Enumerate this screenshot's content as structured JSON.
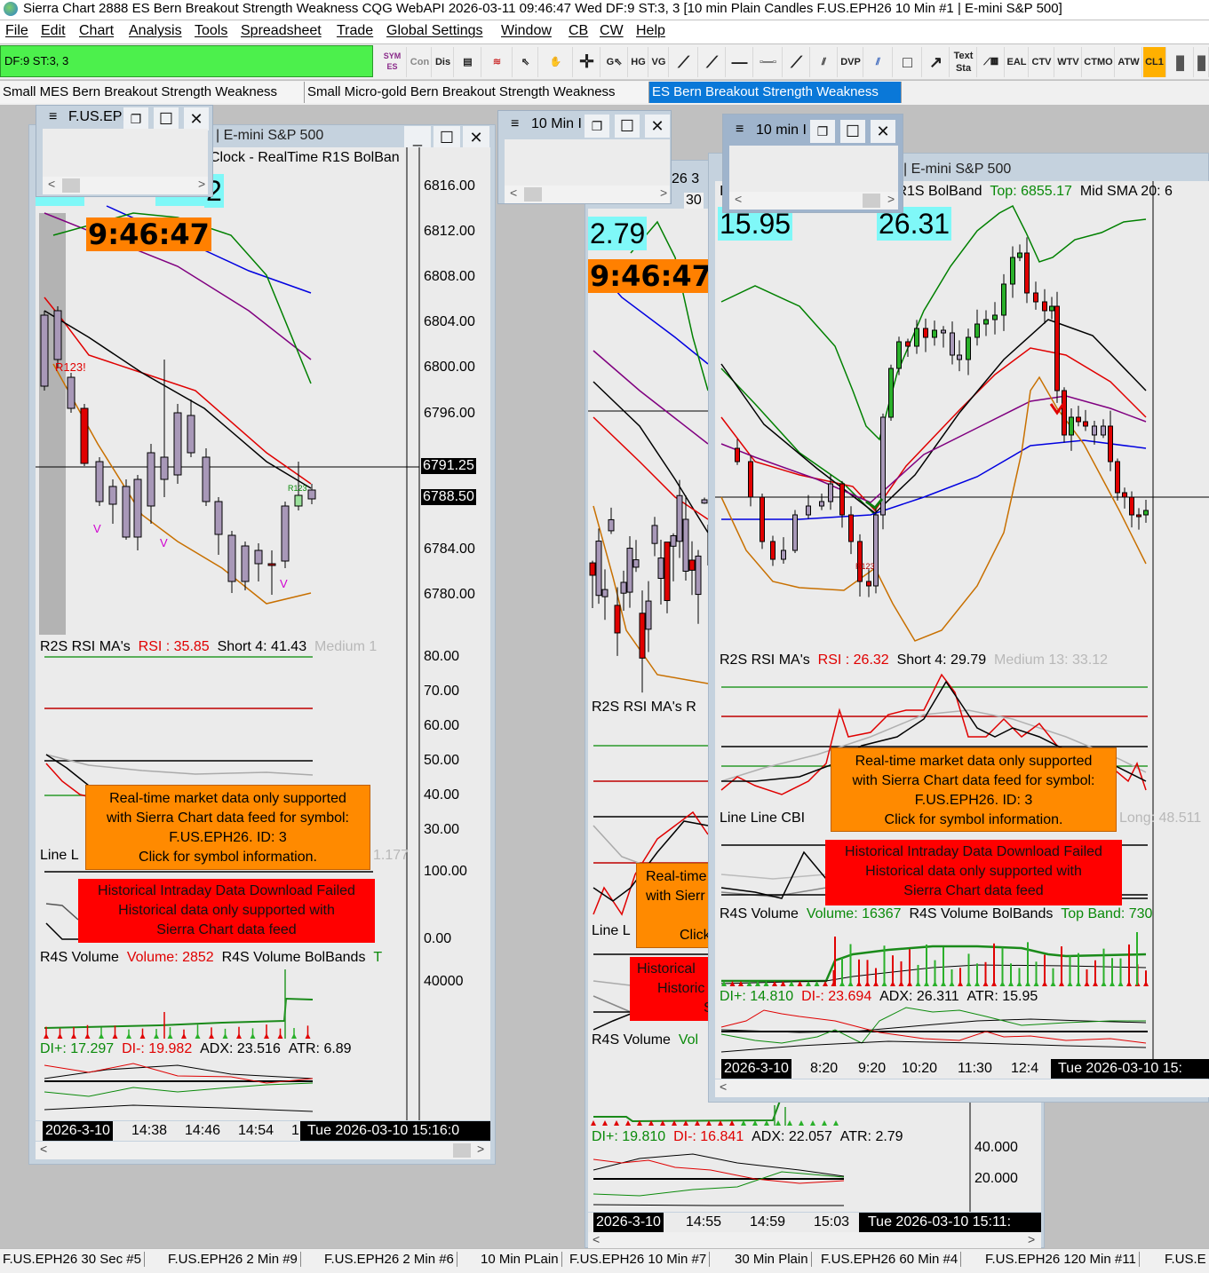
{
  "titlebar": {
    "title": "Sierra Chart 2888 ES Bern Breakout Strength Weakness CQG WebAPI 2026-03-11  09:46:47 Wed DF:9  ST:3, 3 [10 min Plain Candles  F.US.EPH26  10 Min  #1 | E-mini S&P 500]"
  },
  "menu": [
    "File",
    "Edit",
    "Chart",
    "Analysis",
    "Tools",
    "Spreadsheet",
    "Trade",
    "Global Settings",
    "Window",
    "CB",
    "CW",
    "Help"
  ],
  "toolbar": {
    "status": "DF:9  ST:3, 3",
    "buttons": [
      "SYM ES",
      "Con",
      "Dis",
      "HG",
      "VG",
      "DVP",
      "Text Sta",
      "EAL",
      "CTV",
      "WTV",
      "CTMO",
      "ATW",
      "CL1"
    ],
    "accent": "#4cf04c"
  },
  "tabs": [
    {
      "label": "Small MES Bern Breakout Strength Weakness",
      "selected": false
    },
    {
      "label": "Small Micro-gold Bern Breakout Strength Weakness",
      "selected": false
    },
    {
      "label": "ES Bern Breakout Strength Weakness",
      "selected": true
    }
  ],
  "left": {
    "mini_title": "F.US.EPI",
    "title": "| E-mini S&P 500",
    "header": "Clock - RealTime  R1S BolBan",
    "cyan": "2",
    "clock": "9:46:47",
    "study_tag": "R123!",
    "study_tag2": "R123",
    "prices": [
      "6816.00",
      "6812.00",
      "6808.00",
      "6804.00",
      "6800.00",
      "6796.00",
      "6784.00",
      "6780.00"
    ],
    "price_hi": "6791.25",
    "price_last": "6788.50",
    "rsi": {
      "name": "R2S RSI MA's",
      "rsi": "RSI : 35.85",
      "short": "Short 4: 41.43",
      "medium": "Medium 1"
    },
    "rsi_axis": [
      "80.00",
      "70.00",
      "60.00",
      "50.00",
      "40.00",
      "30.00"
    ],
    "line_label": "Line  L",
    "long_partial": "1.177",
    "axis2": [
      "100.00",
      "0.00"
    ],
    "volume": {
      "name": "R4S Volume",
      "value": "Volume: 2852",
      "bands": "R4S Volume BolBands",
      "partial": "T",
      "axis": "40000"
    },
    "di": {
      "plus": "DI+: 17.297",
      "minus": "DI-: 19.982",
      "adx": "ADX: 23.516",
      "atr": "ATR: 6.89"
    },
    "dates": {
      "date": "2026-3-10",
      "ticks": [
        "14:38",
        "14:46",
        "14:54",
        "1"
      ],
      "cursor": "Tue 2026-03-10  15:16:0"
    },
    "v": "V"
  },
  "middle": {
    "mini_title": "10 Min I",
    "partial1": "26  3",
    "partial2": "30",
    "cyan": "2.79",
    "clock": "9:46:47",
    "rsi_name": "R2S RSI MA's  R",
    "line_label": "Line  L",
    "msg_orange": [
      "Real-time",
      "with Sierr",
      "Click"
    ],
    "msg_red": [
      "Historical",
      "Historic",
      "S"
    ],
    "volume_partial": "R4S Volume",
    "volume_value_partial": "Vol",
    "di": {
      "plus": "DI+: 19.810",
      "minus": "DI-: 16.841",
      "adx": "ADX: 22.057",
      "atr": "ATR: 2.79"
    },
    "axis": [
      "40.000",
      "20.000"
    ],
    "dates": {
      "date": "2026-3-10",
      "ticks": [
        "14:55",
        "14:59",
        "15:03"
      ],
      "cursor": "Tue 2026-03-10  15:11:"
    }
  },
  "right": {
    "mini_title": "10 min I",
    "title": "| E-mini S&P 500",
    "header_lead": "I",
    "header": "R1S BolBand",
    "top": "Top: 6855.17",
    "mid": "Mid SMA 20: 6",
    "cyan1": "15.95",
    "cyan2": "26.31",
    "study_tag": "R123",
    "rsi": {
      "name": "R2S RSI MA's",
      "rsi": "RSI : 26.32",
      "short": "Short 4: 29.79",
      "medium": "Medium 13: 33.12"
    },
    "line_label": "Line  Line  CBI",
    "long": "Long: 48.511",
    "volume": {
      "name": "R4S Volume",
      "value": "Volume: 16367",
      "bands": "R4S Volume BolBands",
      "top": "Top Band: 730"
    },
    "di": {
      "plus": "DI+: 14.810",
      "minus": "DI-: 23.694",
      "adx": "ADX: 26.311",
      "atr": "ATR: 15.95"
    },
    "dates": {
      "date": "2026-3-10",
      "ticks": [
        "8:20",
        "9:20",
        "10:20",
        "11:30",
        "12:4"
      ],
      "cursor": "Tue 2026-03-10  15:"
    }
  },
  "messages": {
    "realtime": [
      "Real-time market data only supported",
      "with Sierra Chart data feed for symbol:",
      "F.US.EPH26.  ID: 3",
      "Click for symbol information."
    ],
    "historical": [
      "Historical Intraday Data Download Failed",
      "Historical data only supported with",
      "Sierra Chart data feed"
    ]
  },
  "statusbar": [
    "F.US.EPH26  30 Sec  #5",
    "F.US.EPH26  2 Min  #9",
    "F.US.EPH26  2 Min  #6",
    "10 Min PLain",
    "F.US.EPH26  10 Min  #7",
    "30 Min Plain",
    "F.US.EPH26  60 Min  #4",
    "F.US.EPH26  120 Min  #11",
    "F.US.E"
  ]
}
